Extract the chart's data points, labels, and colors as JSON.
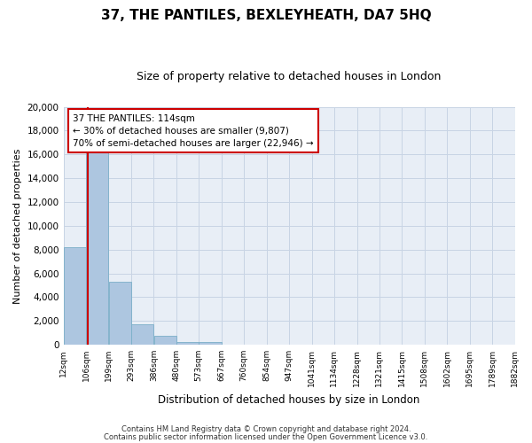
{
  "title": "37, THE PANTILES, BEXLEYHEATH, DA7 5HQ",
  "subtitle": "Size of property relative to detached houses in London",
  "xlabel": "Distribution of detached houses by size in London",
  "ylabel": "Number of detached properties",
  "bar_color": "#adc6e0",
  "bar_edge_color": "#7aafc8",
  "bg_color": "#e8eef6",
  "grid_color": "#c8d4e4",
  "red_line_color": "#cc0000",
  "red_line_x": 114,
  "bin_edges": [
    12,
    106,
    199,
    293,
    386,
    480,
    573,
    667,
    760,
    854,
    947,
    1041,
    1134,
    1228,
    1321,
    1415,
    1508,
    1602,
    1695,
    1789,
    1882
  ],
  "bin_labels": [
    "12sqm",
    "106sqm",
    "199sqm",
    "293sqm",
    "386sqm",
    "480sqm",
    "573sqm",
    "667sqm",
    "760sqm",
    "854sqm",
    "947sqm",
    "1041sqm",
    "1134sqm",
    "1228sqm",
    "1321sqm",
    "1415sqm",
    "1508sqm",
    "1602sqm",
    "1695sqm",
    "1789sqm",
    "1882sqm"
  ],
  "counts": [
    8200,
    16700,
    5300,
    1750,
    750,
    250,
    270,
    0,
    0,
    0,
    0,
    0,
    0,
    0,
    0,
    0,
    0,
    0,
    0,
    0
  ],
  "ylim": [
    0,
    20000
  ],
  "yticks": [
    0,
    2000,
    4000,
    6000,
    8000,
    10000,
    12000,
    14000,
    16000,
    18000,
    20000
  ],
  "annotation_title": "37 THE PANTILES: 114sqm",
  "annotation_line1": "← 30% of detached houses are smaller (9,807)",
  "annotation_line2": "70% of semi-detached houses are larger (22,946) →",
  "footnote1": "Contains HM Land Registry data © Crown copyright and database right 2024.",
  "footnote2": "Contains public sector information licensed under the Open Government Licence v3.0."
}
